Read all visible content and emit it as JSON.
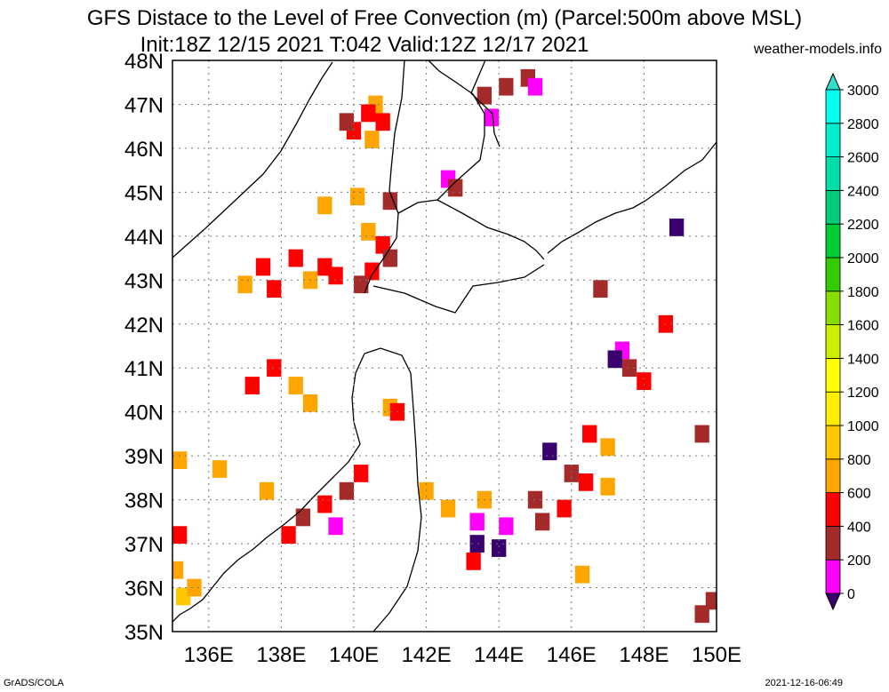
{
  "title_line1": "GFS Distace to the Level of Free Convection (m) (Parcel:500m above MSL)",
  "title_line2": "Init:18Z 12/15 2021 T:042 Valid:12Z 12/17 2021",
  "credit": "weather-models.info",
  "footer_left": "GrADS/COLA",
  "footer_right": "2021-12-16-06:49",
  "map": {
    "lon_range": [
      135,
      150
    ],
    "lat_range": [
      35,
      48
    ],
    "lon_ticks": [
      "136E",
      "138E",
      "140E",
      "142E",
      "144E",
      "146E",
      "148E",
      "150E"
    ],
    "lat_ticks": [
      "35N",
      "36N",
      "37N",
      "38N",
      "39N",
      "40N",
      "41N",
      "42N",
      "43N",
      "44N",
      "45N",
      "46N",
      "47N",
      "48N"
    ],
    "grid": true
  },
  "colorbar": {
    "labels": [
      "0",
      "200",
      "400",
      "600",
      "800",
      "1000",
      "1200",
      "1400",
      "1600",
      "1800",
      "2000",
      "2200",
      "2400",
      "2600",
      "2800",
      "3000"
    ],
    "colors": [
      "#3a006e",
      "#ff00ff",
      "#a52a2a",
      "#ff0000",
      "#ffa500",
      "#ffc800",
      "#ffee00",
      "#ffff00",
      "#ccee00",
      "#88dd00",
      "#33cc00",
      "#00cc33",
      "#00cc77",
      "#00ddaa",
      "#00eecc",
      "#00ffee"
    ],
    "under_color": "#3a006e",
    "over_color": "#33ddcc"
  },
  "cells": [
    [
      140.6,
      47.0,
      "#ffa500"
    ],
    [
      140.4,
      46.8,
      "#ff0000"
    ],
    [
      140.8,
      46.6,
      "#ff0000"
    ],
    [
      140.0,
      46.4,
      "#ff0000"
    ],
    [
      140.5,
      46.2,
      "#ffa500"
    ],
    [
      139.8,
      46.6,
      "#a52a2a"
    ],
    [
      144.2,
      47.4,
      "#a52a2a"
    ],
    [
      144.8,
      47.6,
      "#a52a2a"
    ],
    [
      145.0,
      47.4,
      "#ff00ff"
    ],
    [
      143.6,
      47.2,
      "#a52a2a"
    ],
    [
      143.8,
      46.7,
      "#ff00ff"
    ],
    [
      142.6,
      45.3,
      "#ff00ff"
    ],
    [
      142.8,
      45.1,
      "#a52a2a"
    ],
    [
      140.1,
      44.9,
      "#ffa500"
    ],
    [
      139.2,
      44.7,
      "#ffa500"
    ],
    [
      141.0,
      44.8,
      "#a52a2a"
    ],
    [
      140.4,
      44.1,
      "#ffa500"
    ],
    [
      140.8,
      43.8,
      "#ff0000"
    ],
    [
      141.0,
      43.5,
      "#a52a2a"
    ],
    [
      140.5,
      43.2,
      "#ff0000"
    ],
    [
      140.2,
      42.9,
      "#a52a2a"
    ],
    [
      137.5,
      43.3,
      "#ff0000"
    ],
    [
      137.0,
      42.9,
      "#ffa500"
    ],
    [
      137.8,
      42.8,
      "#ff0000"
    ],
    [
      138.4,
      43.5,
      "#ff0000"
    ],
    [
      139.2,
      43.3,
      "#ff0000"
    ],
    [
      138.8,
      43.0,
      "#ffa500"
    ],
    [
      139.5,
      43.1,
      "#ff0000"
    ],
    [
      137.8,
      41.0,
      "#ff0000"
    ],
    [
      138.4,
      40.6,
      "#ffa500"
    ],
    [
      137.2,
      40.6,
      "#ff0000"
    ],
    [
      138.8,
      40.2,
      "#ffa500"
    ],
    [
      141.0,
      40.1,
      "#ffa500"
    ],
    [
      141.2,
      40.0,
      "#ff0000"
    ],
    [
      135.2,
      38.9,
      "#ffa500"
    ],
    [
      136.3,
      38.7,
      "#ffa500"
    ],
    [
      137.6,
      38.2,
      "#ffa500"
    ],
    [
      138.6,
      37.6,
      "#a52a2a"
    ],
    [
      139.2,
      37.9,
      "#ff0000"
    ],
    [
      139.5,
      37.4,
      "#ff00ff"
    ],
    [
      138.2,
      37.2,
      "#ff0000"
    ],
    [
      139.8,
      38.2,
      "#a52a2a"
    ],
    [
      140.2,
      38.6,
      "#ff0000"
    ],
    [
      142.6,
      37.8,
      "#ffa500"
    ],
    [
      143.4,
      37.5,
      "#ff00ff"
    ],
    [
      144.2,
      37.4,
      "#ff00ff"
    ],
    [
      143.4,
      37.0,
      "#3a006e"
    ],
    [
      144.0,
      36.9,
      "#3a006e"
    ],
    [
      145.2,
      37.5,
      "#a52a2a"
    ],
    [
      145.8,
      37.8,
      "#ff0000"
    ],
    [
      146.4,
      38.4,
      "#ff0000"
    ],
    [
      146.0,
      38.6,
      "#a52a2a"
    ],
    [
      147.0,
      39.2,
      "#ffa500"
    ],
    [
      146.5,
      39.5,
      "#ff0000"
    ],
    [
      145.4,
      39.1,
      "#3a006e"
    ],
    [
      142.0,
      38.2,
      "#ffa500"
    ],
    [
      143.6,
      38.0,
      "#ffa500"
    ],
    [
      145.0,
      38.0,
      "#a52a2a"
    ],
    [
      147.0,
      38.3,
      "#ffa500"
    ],
    [
      147.4,
      41.4,
      "#ff00ff"
    ],
    [
      147.6,
      41.0,
      "#a52a2a"
    ],
    [
      147.2,
      41.2,
      "#3a006e"
    ],
    [
      148.0,
      40.7,
      "#ff0000"
    ],
    [
      146.8,
      42.8,
      "#a52a2a"
    ],
    [
      148.6,
      42.0,
      "#ff0000"
    ],
    [
      148.9,
      44.2,
      "#3a006e"
    ],
    [
      149.6,
      39.5,
      "#a52a2a"
    ],
    [
      135.1,
      36.4,
      "#ffa500"
    ],
    [
      135.3,
      35.8,
      "#ffc800"
    ],
    [
      135.6,
      36.0,
      "#ffa500"
    ],
    [
      135.2,
      37.2,
      "#ff0000"
    ],
    [
      143.3,
      36.6,
      "#ff0000"
    ],
    [
      149.6,
      35.4,
      "#a52a2a"
    ],
    [
      149.9,
      35.7,
      "#a52a2a"
    ],
    [
      146.3,
      36.3,
      "#ffa500"
    ]
  ]
}
